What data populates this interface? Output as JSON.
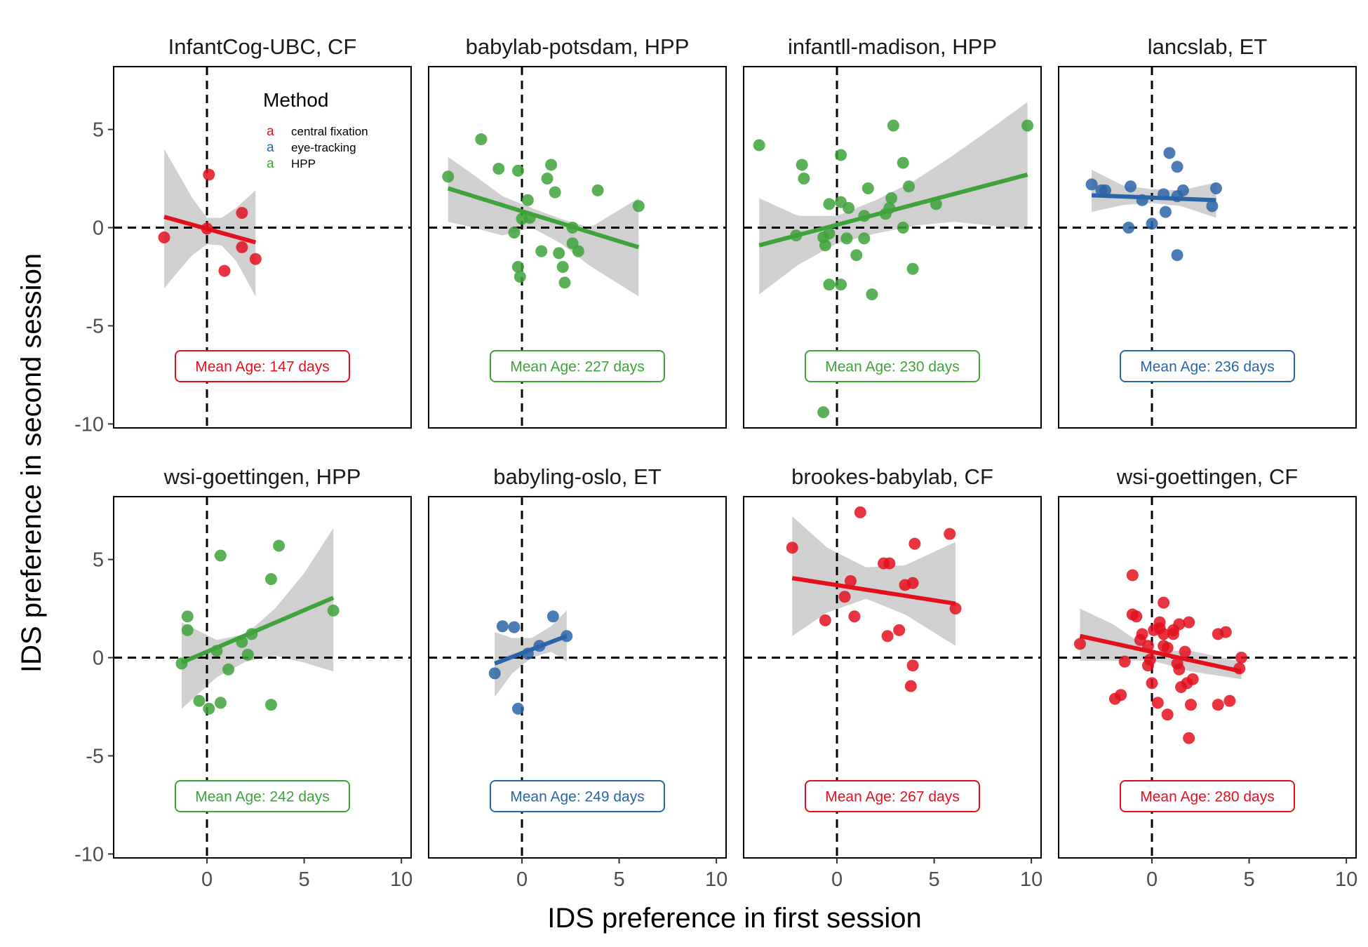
{
  "chart_data": {
    "type": "scatter",
    "xlabel": "IDS preference in first session",
    "ylabel": "IDS preference in second session",
    "xlim": [
      -4.8,
      10.5
    ],
    "ylim": [
      -10.2,
      8.2
    ],
    "x_ticks": [
      0,
      5,
      10
    ],
    "y_ticks": [
      5,
      0,
      -5,
      -10
    ],
    "x_tick_labels": [
      "0",
      "5",
      "10"
    ],
    "y_tick_labels": [
      "5",
      "0",
      "-5",
      "-10"
    ],
    "reference_lines": {
      "x": 0,
      "y": 0,
      "style": "dashed"
    },
    "grid": false,
    "legend": {
      "title": "Method",
      "placement": "top-left panel, inside",
      "key_glyph": "a",
      "entries": [
        {
          "label": "central fixation",
          "color": "#E3101E"
        },
        {
          "label": "eye-tracking",
          "color": "#2B65A9"
        },
        {
          "label": "HPP",
          "color": "#3EA33A"
        }
      ]
    },
    "method_colors": {
      "CF": "#E3101E",
      "ET": "#2B65A9",
      "HPP": "#3EA33A"
    },
    "ribbon_color": "#CBCBCB",
    "panels": [
      {
        "title": "InfantCog-UBC, CF",
        "method": "CF",
        "annotation": "Mean Age: 147 days",
        "points": [
          [
            -2.2,
            -0.5
          ],
          [
            0.1,
            2.7
          ],
          [
            0.0,
            -0.05
          ],
          [
            0.9,
            -2.2
          ],
          [
            1.8,
            0.75
          ],
          [
            1.8,
            -1.0
          ],
          [
            2.5,
            -1.6
          ]
        ],
        "fit": {
          "x": [
            -2.2,
            2.5
          ],
          "y": [
            0.55,
            -0.75
          ]
        },
        "ribbon": {
          "x": [
            -2.2,
            -1.5,
            -0.75,
            0,
            0.75,
            1.5,
            2.5
          ],
          "lo": [
            -3.1,
            -2.25,
            -1.4,
            -0.85,
            -0.9,
            -1.7,
            -3.5
          ],
          "hi": [
            4.0,
            2.8,
            1.5,
            0.5,
            0.5,
            1.0,
            1.9
          ]
        }
      },
      {
        "title": "babylab-potsdam, HPP",
        "method": "HPP",
        "annotation": "Mean Age: 227 days",
        "points": [
          [
            -3.8,
            2.6
          ],
          [
            -2.1,
            4.5
          ],
          [
            -1.2,
            3.0
          ],
          [
            -0.2,
            2.9
          ],
          [
            0.3,
            1.4
          ],
          [
            1.3,
            2.5
          ],
          [
            1.5,
            3.2
          ],
          [
            1.7,
            1.8
          ],
          [
            3.9,
            1.9
          ],
          [
            6.0,
            1.1
          ],
          [
            0.0,
            0.45
          ],
          [
            0.4,
            0.5
          ],
          [
            -0.4,
            -0.25
          ],
          [
            -0.2,
            -2.0
          ],
          [
            -0.1,
            -2.5
          ],
          [
            1.0,
            -1.2
          ],
          [
            1.9,
            -1.3
          ],
          [
            2.1,
            -2.0
          ],
          [
            2.2,
            -2.8
          ],
          [
            2.6,
            0.0
          ],
          [
            2.6,
            -0.8
          ],
          [
            2.9,
            -1.2
          ]
        ],
        "fit": {
          "x": [
            -3.8,
            6.0
          ],
          "y": [
            2.0,
            -1.0
          ]
        },
        "ribbon": {
          "x": [
            -3.8,
            -2.5,
            -1,
            0.5,
            2,
            3.5,
            6.0
          ],
          "lo": [
            0.3,
            0.0,
            -0.4,
            0.0,
            -0.8,
            -1.95,
            -3.5
          ],
          "hi": [
            3.6,
            2.7,
            1.6,
            1.0,
            0.45,
            0.0,
            1.5
          ]
        }
      },
      {
        "title": "infantll-madison, HPP",
        "method": "HPP",
        "annotation": "Mean Age: 230 days",
        "points": [
          [
            -4.0,
            4.2
          ],
          [
            -1.8,
            3.2
          ],
          [
            -1.7,
            2.5
          ],
          [
            0.2,
            3.7
          ],
          [
            2.9,
            5.2
          ],
          [
            3.4,
            3.3
          ],
          [
            9.8,
            5.2
          ],
          [
            -2.1,
            -0.4
          ],
          [
            -0.7,
            -0.5
          ],
          [
            -0.6,
            -0.9
          ],
          [
            -0.4,
            -0.3
          ],
          [
            -0.4,
            1.2
          ],
          [
            0.2,
            1.3
          ],
          [
            0.6,
            1.0
          ],
          [
            1.4,
            0.6
          ],
          [
            1.6,
            2.0
          ],
          [
            2.5,
            0.7
          ],
          [
            2.7,
            1.0
          ],
          [
            2.8,
            1.5
          ],
          [
            3.4,
            0.0
          ],
          [
            3.7,
            2.1
          ],
          [
            5.1,
            1.2
          ],
          [
            0.5,
            -0.55
          ],
          [
            1.0,
            -1.4
          ],
          [
            1.4,
            -0.55
          ],
          [
            -0.4,
            -2.9
          ],
          [
            0.2,
            -2.9
          ],
          [
            1.8,
            -3.4
          ],
          [
            3.9,
            -2.1
          ],
          [
            -0.7,
            -9.4
          ]
        ],
        "fit": {
          "x": [
            -4.0,
            9.8
          ],
          "y": [
            -0.9,
            2.7
          ]
        },
        "ribbon": {
          "x": [
            -4.0,
            -2,
            0,
            2,
            4,
            6,
            8,
            9.8
          ],
          "lo": [
            -3.4,
            -1.9,
            -0.8,
            -0.3,
            0.1,
            0.3,
            0.1,
            -0.1
          ],
          "hi": [
            1.5,
            0.6,
            0.6,
            1.4,
            2.4,
            3.7,
            5.1,
            6.4
          ]
        }
      },
      {
        "title": "lancslab, ET",
        "method": "ET",
        "annotation": "Mean Age: 236 days",
        "points": [
          [
            -3.1,
            2.2
          ],
          [
            -2.6,
            1.9
          ],
          [
            -2.4,
            1.9
          ],
          [
            -1.1,
            2.1
          ],
          [
            -0.5,
            1.4
          ],
          [
            0.6,
            1.7
          ],
          [
            0.7,
            0.8
          ],
          [
            1.3,
            1.6
          ],
          [
            1.6,
            1.9
          ],
          [
            3.3,
            2.0
          ],
          [
            3.1,
            1.1
          ],
          [
            0.9,
            3.8
          ],
          [
            1.3,
            3.1
          ],
          [
            -1.2,
            0.0
          ],
          [
            0.0,
            0.2
          ],
          [
            1.3,
            -1.4
          ]
        ],
        "fit": {
          "x": [
            -3.1,
            3.3
          ],
          "y": [
            1.65,
            1.4
          ]
        },
        "ribbon": {
          "x": [
            -3.1,
            -1.5,
            0,
            1.5,
            3.3
          ],
          "lo": [
            0.8,
            1.15,
            1.25,
            1.1,
            0.5
          ],
          "hi": [
            2.95,
            2.15,
            1.95,
            1.9,
            2.3
          ]
        }
      },
      {
        "title": "wsi-goettingen, HPP",
        "method": "HPP",
        "annotation": "Mean Age: 242 days",
        "points": [
          [
            -1.3,
            -0.3
          ],
          [
            -1.0,
            2.1
          ],
          [
            -1.0,
            1.4
          ],
          [
            0.7,
            5.2
          ],
          [
            3.7,
            5.7
          ],
          [
            3.3,
            4.0
          ],
          [
            6.5,
            2.4
          ],
          [
            0.5,
            0.35
          ],
          [
            1.1,
            -0.6
          ],
          [
            1.8,
            0.8
          ],
          [
            2.3,
            1.2
          ],
          [
            2.1,
            0.15
          ],
          [
            -0.4,
            -2.2
          ],
          [
            0.1,
            -2.6
          ],
          [
            0.7,
            -2.3
          ],
          [
            3.3,
            -2.4
          ]
        ],
        "fit": {
          "x": [
            -1.3,
            6.5
          ],
          "y": [
            -0.25,
            3.05
          ]
        },
        "ribbon": {
          "x": [
            -1.3,
            0.5,
            2,
            3.5,
            5,
            6.5
          ],
          "lo": [
            -2.6,
            -1.0,
            -0.2,
            0.1,
            -0.25,
            -0.7
          ],
          "hi": [
            1.8,
            0.9,
            1.2,
            2.5,
            4.3,
            6.6
          ]
        }
      },
      {
        "title": "babyling-oslo, ET",
        "method": "ET",
        "annotation": "Mean Age: 249 days",
        "points": [
          [
            -1.4,
            -0.8
          ],
          [
            -1.0,
            1.6
          ],
          [
            -0.4,
            1.55
          ],
          [
            0.3,
            0.2
          ],
          [
            0.9,
            0.6
          ],
          [
            1.6,
            2.1
          ],
          [
            2.3,
            1.1
          ],
          [
            -0.2,
            -2.6
          ]
        ],
        "fit": {
          "x": [
            -1.4,
            2.3
          ],
          "y": [
            -0.3,
            1.1
          ]
        },
        "ribbon": {
          "x": [
            -1.4,
            -0.5,
            0.5,
            1.5,
            2.3
          ],
          "lo": [
            -2.0,
            -0.8,
            0.0,
            0.3,
            -0.2
          ],
          "hi": [
            1.3,
            1.0,
            1.0,
            1.6,
            2.4
          ]
        }
      },
      {
        "title": "brookes-babylab, CF",
        "method": "CF",
        "annotation": "Mean Age: 267 days",
        "points": [
          [
            -2.3,
            5.6
          ],
          [
            1.2,
            7.4
          ],
          [
            0.7,
            3.9
          ],
          [
            0.4,
            3.1
          ],
          [
            2.4,
            4.8
          ],
          [
            2.7,
            4.8
          ],
          [
            3.5,
            3.7
          ],
          [
            3.9,
            3.8
          ],
          [
            4.0,
            5.8
          ],
          [
            5.8,
            6.3
          ],
          [
            6.1,
            2.5
          ],
          [
            -0.6,
            1.9
          ],
          [
            0.9,
            2.1
          ],
          [
            2.6,
            1.1
          ],
          [
            3.2,
            1.4
          ],
          [
            3.9,
            -0.4
          ],
          [
            3.8,
            -1.45
          ]
        ],
        "fit": {
          "x": [
            -2.3,
            6.1
          ],
          "y": [
            4.05,
            2.75
          ]
        },
        "ribbon": {
          "x": [
            -2.3,
            -0.5,
            1.5,
            3.5,
            6.1
          ],
          "lo": [
            1.1,
            2.3,
            3.0,
            2.2,
            0.6
          ],
          "hi": [
            7.2,
            5.6,
            4.6,
            4.7,
            5.9
          ]
        }
      },
      {
        "title": "wsi-goettingen, CF",
        "method": "CF",
        "annotation": "Mean Age: 280 days",
        "points": [
          [
            -3.7,
            0.7
          ],
          [
            -1.9,
            -2.1
          ],
          [
            -1.6,
            -1.9
          ],
          [
            -1.0,
            4.2
          ],
          [
            -1.0,
            2.2
          ],
          [
            -0.8,
            2.1
          ],
          [
            -1.4,
            -0.2
          ],
          [
            -0.6,
            0.9
          ],
          [
            -0.5,
            1.2
          ],
          [
            -0.2,
            0.6
          ],
          [
            -0.1,
            -0.1
          ],
          [
            -0.2,
            -0.4
          ],
          [
            0.0,
            -1.3
          ],
          [
            0.1,
            1.4
          ],
          [
            0.4,
            1.5
          ],
          [
            0.4,
            1.8
          ],
          [
            0.6,
            0.6
          ],
          [
            0.6,
            1.2
          ],
          [
            0.6,
            2.8
          ],
          [
            0.8,
            0.5
          ],
          [
            1.1,
            1.4
          ],
          [
            1.4,
            1.7
          ],
          [
            1.1,
            1.2
          ],
          [
            1.3,
            -0.3
          ],
          [
            1.4,
            -0.6
          ],
          [
            1.5,
            -1.5
          ],
          [
            1.8,
            -1.3
          ],
          [
            1.7,
            0.3
          ],
          [
            1.9,
            1.8
          ],
          [
            2.1,
            -1.1
          ],
          [
            0.3,
            -2.3
          ],
          [
            0.8,
            -2.9
          ],
          [
            2.0,
            -2.4
          ],
          [
            1.9,
            -4.1
          ],
          [
            3.4,
            -2.4
          ],
          [
            3.4,
            1.2
          ],
          [
            3.8,
            1.3
          ],
          [
            4.0,
            -2.2
          ],
          [
            4.6,
            0.0
          ],
          [
            4.5,
            -0.55
          ]
        ],
        "fit": {
          "x": [
            -3.7,
            4.6
          ],
          "y": [
            1.1,
            -0.7
          ]
        },
        "ribbon": {
          "x": [
            -3.7,
            -2,
            0,
            2,
            4.6
          ],
          "lo": [
            -0.15,
            -0.15,
            -0.15,
            -0.7,
            -1.1
          ],
          "hi": [
            2.5,
            1.7,
            0.35,
            0.35,
            -0.2
          ]
        }
      }
    ]
  }
}
